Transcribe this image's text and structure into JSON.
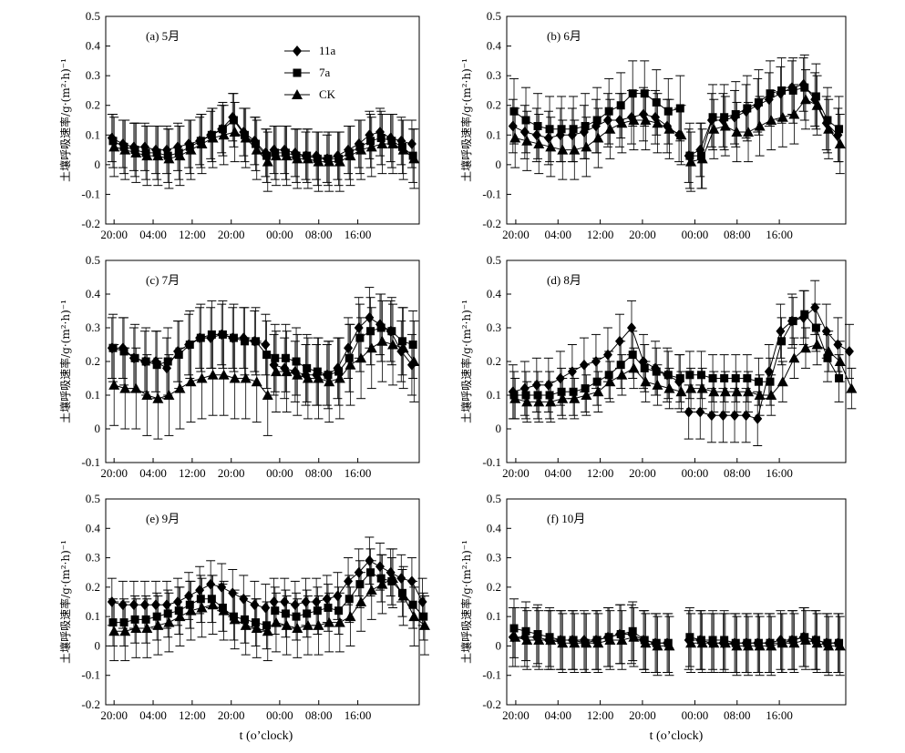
{
  "figure": {
    "xlabel": "t (o’clock)",
    "ylabel": "土壤呼吸速率/g·(m²·h)⁻¹",
    "x_ticks": [
      "20:00",
      "04:00",
      "12:00",
      "20:00",
      "00:00",
      "08:00",
      "16:00"
    ],
    "y_ticks": [
      "0.5",
      "0.4",
      "0.3",
      "0.2",
      "0.1",
      "0",
      "-0.1",
      "-0.2"
    ],
    "legend": [
      "11a",
      "7a",
      "CK"
    ]
  },
  "chart_data": [
    {
      "type": "line",
      "panel": "(a) 5月",
      "ylim": [
        -0.2,
        0.5
      ],
      "x_hours": [
        20,
        21,
        22,
        23,
        24,
        25,
        26,
        27,
        28,
        29,
        30,
        31,
        32,
        33,
        34,
        35,
        36,
        37,
        38,
        39,
        40,
        41,
        42,
        43,
        44,
        45,
        46,
        47,
        48
      ],
      "series": [
        {
          "name": "11a",
          "day1": [
            0.09,
            0.07,
            0.06,
            0.06,
            0.05,
            0.05,
            0.06,
            0.07,
            0.08,
            0.1,
            0.12,
            0.16,
            0.11,
            0.08,
            0.04
          ],
          "day2": [
            0.05,
            0.05,
            0.04,
            0.03,
            0.03,
            0.02,
            0.03,
            0.05,
            0.07,
            0.1,
            0.11,
            0.09,
            0.08,
            0.07
          ],
          "err": 0.08
        },
        {
          "name": "7a",
          "day1": [
            0.08,
            0.06,
            0.05,
            0.04,
            0.04,
            0.03,
            0.04,
            0.06,
            0.08,
            0.1,
            0.12,
            0.15,
            0.1,
            0.07,
            0.03
          ],
          "day2": [
            0.04,
            0.04,
            0.03,
            0.03,
            0.02,
            0.02,
            0.02,
            0.04,
            0.06,
            0.08,
            0.09,
            0.08,
            0.06,
            0.03
          ],
          "err": 0.09
        },
        {
          "name": "CK",
          "day1": [
            0.06,
            0.05,
            0.04,
            0.03,
            0.03,
            0.02,
            0.03,
            0.05,
            0.07,
            0.09,
            0.1,
            0.11,
            0.09,
            0.05,
            0.01
          ],
          "day2": [
            0.03,
            0.03,
            0.02,
            0.02,
            0.01,
            0.01,
            0.01,
            0.03,
            0.05,
            0.06,
            0.07,
            0.07,
            0.05,
            0.02
          ],
          "err": 0.1
        }
      ]
    },
    {
      "type": "line",
      "panel": "(b) 6月",
      "ylim": [
        -0.2,
        0.5
      ],
      "x_hours": [
        20,
        21,
        22,
        23,
        24,
        25,
        26,
        27,
        28,
        29,
        30,
        31,
        32,
        33,
        34,
        35,
        36,
        37,
        38,
        39,
        40,
        41,
        42,
        43,
        44,
        45,
        46,
        47,
        48
      ],
      "series": [
        {
          "name": "11a",
          "day1": [
            0.13,
            0.11,
            0.1,
            0.09,
            0.1,
            0.1,
            0.11,
            0.13,
            0.15,
            0.15,
            0.16,
            0.17,
            0.16,
            0.13,
            0.1
          ],
          "day2": [
            0.03,
            0.05,
            0.15,
            0.15,
            0.16,
            0.18,
            0.2,
            0.22,
            0.24,
            0.26,
            0.27,
            0.22,
            0.14,
            0.1
          ],
          "err": 0.09
        },
        {
          "name": "7a",
          "day1": [
            0.18,
            0.15,
            0.13,
            0.12,
            0.12,
            0.12,
            0.13,
            0.15,
            0.18,
            0.2,
            0.24,
            0.24,
            0.21,
            0.18,
            0.19
          ],
          "day2": [
            0.03,
            0.03,
            0.16,
            0.16,
            0.17,
            0.19,
            0.21,
            0.24,
            0.25,
            0.25,
            0.26,
            0.23,
            0.15,
            0.12
          ],
          "err": 0.11
        },
        {
          "name": "CK",
          "day1": [
            0.09,
            0.08,
            0.07,
            0.06,
            0.05,
            0.05,
            0.06,
            0.09,
            0.12,
            0.14,
            0.15,
            0.15,
            0.14,
            0.12,
            0.1
          ],
          "day2": [
            0.01,
            0.02,
            0.12,
            0.13,
            0.11,
            0.11,
            0.13,
            0.15,
            0.16,
            0.17,
            0.22,
            0.2,
            0.12,
            0.07
          ],
          "err": 0.1
        }
      ]
    },
    {
      "type": "line",
      "panel": "(c) 7月",
      "ylim": [
        -0.1,
        0.5
      ],
      "x_hours": [
        20,
        21,
        22,
        23,
        24,
        25,
        26,
        27,
        28,
        29,
        30,
        31,
        32,
        33,
        34,
        35,
        36,
        37,
        38,
        39,
        40,
        41,
        42,
        43,
        44,
        45,
        46,
        47,
        48
      ],
      "series": [
        {
          "name": "11a",
          "day1": [
            0.24,
            0.24,
            0.21,
            0.2,
            0.2,
            0.18,
            0.23,
            0.25,
            0.27,
            0.27,
            0.28,
            0.27,
            0.27,
            0.26,
            0.25
          ],
          "day2": [
            0.19,
            0.18,
            0.17,
            0.16,
            0.16,
            0.16,
            0.18,
            0.24,
            0.3,
            0.33,
            0.31,
            0.29,
            0.23,
            0.19
          ],
          "err": 0.09
        },
        {
          "name": "7a",
          "day1": [
            0.24,
            0.23,
            0.21,
            0.2,
            0.19,
            0.2,
            0.22,
            0.25,
            0.27,
            0.28,
            0.28,
            0.27,
            0.26,
            0.26,
            0.22
          ],
          "day2": [
            0.21,
            0.21,
            0.2,
            0.18,
            0.17,
            0.16,
            0.17,
            0.21,
            0.27,
            0.29,
            0.3,
            0.29,
            0.26,
            0.25
          ],
          "err": 0.1
        },
        {
          "name": "CK",
          "day1": [
            0.13,
            0.12,
            0.12,
            0.1,
            0.09,
            0.1,
            0.12,
            0.14,
            0.15,
            0.16,
            0.16,
            0.15,
            0.15,
            0.14,
            0.1
          ],
          "day2": [
            0.17,
            0.17,
            0.16,
            0.15,
            0.15,
            0.14,
            0.15,
            0.19,
            0.21,
            0.24,
            0.26,
            0.25,
            0.24,
            0.2
          ],
          "err": 0.12
        }
      ]
    },
    {
      "type": "line",
      "panel": "(d) 8月",
      "ylim": [
        -0.1,
        0.5
      ],
      "x_hours": [
        20,
        21,
        22,
        23,
        24,
        25,
        26,
        27,
        28,
        29,
        30,
        31,
        32,
        33,
        34,
        35,
        36,
        37,
        38,
        39,
        40,
        41,
        42,
        43,
        44,
        45,
        46,
        47,
        48
      ],
      "series": [
        {
          "name": "11a",
          "day1": [
            0.11,
            0.12,
            0.13,
            0.13,
            0.15,
            0.17,
            0.19,
            0.2,
            0.22,
            0.26,
            0.3,
            0.2,
            0.18,
            0.16,
            0.14
          ],
          "day2": [
            0.05,
            0.05,
            0.04,
            0.04,
            0.04,
            0.04,
            0.03,
            0.17,
            0.29,
            0.32,
            0.33,
            0.36,
            0.29,
            0.25,
            0.23
          ],
          "err": 0.08
        },
        {
          "name": "7a",
          "day1": [
            0.1,
            0.1,
            0.1,
            0.1,
            0.11,
            0.11,
            0.12,
            0.14,
            0.16,
            0.19,
            0.22,
            0.18,
            0.17,
            0.16,
            0.15
          ],
          "day2": [
            0.16,
            0.16,
            0.15,
            0.15,
            0.15,
            0.15,
            0.14,
            0.14,
            0.26,
            0.32,
            0.34,
            0.3,
            0.21,
            0.15
          ],
          "err": 0.07
        },
        {
          "name": "CK",
          "day1": [
            0.09,
            0.08,
            0.08,
            0.08,
            0.09,
            0.09,
            0.1,
            0.11,
            0.14,
            0.16,
            0.18,
            0.14,
            0.13,
            0.12,
            0.11
          ],
          "day2": [
            0.12,
            0.12,
            0.11,
            0.11,
            0.11,
            0.11,
            0.1,
            0.1,
            0.14,
            0.21,
            0.24,
            0.25,
            0.23,
            0.2,
            0.12
          ],
          "err": 0.06
        }
      ]
    },
    {
      "type": "line",
      "panel": "(e) 9月",
      "ylim": [
        -0.2,
        0.5
      ],
      "x_hours": [
        20,
        21,
        22,
        23,
        24,
        25,
        26,
        27,
        28,
        29,
        30,
        31,
        32,
        33,
        34,
        35,
        36,
        37,
        38,
        39,
        40,
        41,
        42,
        43,
        44,
        45,
        46,
        47,
        48
      ],
      "series": [
        {
          "name": "11a",
          "day1": [
            0.15,
            0.14,
            0.14,
            0.14,
            0.14,
            0.14,
            0.15,
            0.17,
            0.19,
            0.21,
            0.2,
            0.18,
            0.16,
            0.14,
            0.13
          ],
          "day2": [
            0.15,
            0.15,
            0.14,
            0.15,
            0.15,
            0.16,
            0.17,
            0.22,
            0.25,
            0.29,
            0.27,
            0.25,
            0.23,
            0.22,
            0.15
          ],
          "err": 0.08
        },
        {
          "name": "7a",
          "day1": [
            0.08,
            0.08,
            0.09,
            0.09,
            0.1,
            0.11,
            0.12,
            0.14,
            0.16,
            0.16,
            0.13,
            0.1,
            0.09,
            0.08,
            0.07
          ],
          "day2": [
            0.12,
            0.11,
            0.1,
            0.11,
            0.12,
            0.13,
            0.12,
            0.16,
            0.21,
            0.25,
            0.23,
            0.22,
            0.18,
            0.14,
            0.1
          ],
          "err": 0.08
        },
        {
          "name": "CK",
          "day1": [
            0.05,
            0.05,
            0.06,
            0.06,
            0.07,
            0.08,
            0.1,
            0.12,
            0.13,
            0.14,
            0.12,
            0.09,
            0.07,
            0.06,
            0.05
          ],
          "day2": [
            0.08,
            0.07,
            0.06,
            0.07,
            0.07,
            0.08,
            0.08,
            0.1,
            0.15,
            0.19,
            0.21,
            0.23,
            0.17,
            0.1,
            0.07
          ],
          "err": 0.1
        }
      ]
    },
    {
      "type": "line",
      "panel": "(f) 10月",
      "ylim": [
        -0.2,
        0.5
      ],
      "x_hours": [
        20,
        21,
        22,
        23,
        24,
        25,
        26,
        27,
        28,
        29,
        30,
        31,
        32,
        33,
        34,
        35,
        36,
        37,
        38,
        39,
        40,
        41,
        42,
        43,
        44,
        45,
        46,
        47,
        48
      ],
      "series": [
        {
          "name": "11a",
          "day1": [
            0.03,
            0.03,
            0.03,
            0.02,
            0.02,
            0.02,
            0.02,
            0.02,
            0.03,
            0.04,
            0.04,
            0.02,
            0.01,
            0.01
          ],
          "day2": [
            0.02,
            0.02,
            0.01,
            0.01,
            0.01,
            0.01,
            0.01,
            0.01,
            0.02,
            0.02,
            0.03,
            0.02,
            0.01,
            0.01
          ],
          "err": 0.1
        },
        {
          "name": "7a",
          "day1": [
            0.06,
            0.05,
            0.04,
            0.03,
            0.02,
            0.02,
            0.01,
            0.02,
            0.03,
            0.04,
            0.05,
            0.02,
            0.01,
            0.01
          ],
          "day2": [
            0.03,
            0.02,
            0.02,
            0.02,
            0.01,
            0.01,
            0.01,
            0.01,
            0.01,
            0.02,
            0.03,
            0.02,
            0.01,
            0.01
          ],
          "err": 0.1
        },
        {
          "name": "CK",
          "day1": [
            0.03,
            0.02,
            0.02,
            0.02,
            0.01,
            0.01,
            0.01,
            0.01,
            0.02,
            0.02,
            0.03,
            0.01,
            0.0,
            0.0
          ],
          "day2": [
            0.01,
            0.01,
            0.01,
            0.01,
            0.0,
            0.0,
            0.0,
            0.0,
            0.01,
            0.01,
            0.02,
            0.01,
            0.0,
            0.0
          ],
          "err": 0.1
        }
      ]
    }
  ]
}
